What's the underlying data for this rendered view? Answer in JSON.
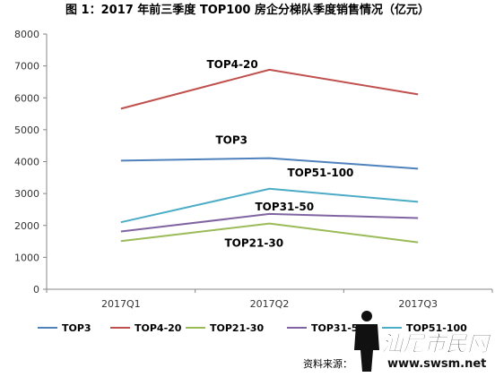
{
  "chart_data": {
    "type": "line",
    "title": "图 1：2017 年前三季度 TOP100 房企分梯队季度销售情况（亿元）",
    "categories": [
      "2017Q1",
      "2017Q2",
      "2017Q3"
    ],
    "ylim": [
      0,
      8000
    ],
    "yticks": [
      0,
      1000,
      2000,
      3000,
      4000,
      5000,
      6000,
      7000,
      8000
    ],
    "grid": false,
    "legend_position": "bottom",
    "series": [
      {
        "name": "TOP3",
        "label": "TOP3",
        "color": "#4f81bd",
        "values": [
          4030,
          4110,
          3780
        ]
      },
      {
        "name": "TOP4-20",
        "label": "TOP4-20",
        "color": "#c0504d",
        "values": [
          5660,
          6880,
          6110
        ]
      },
      {
        "name": "TOP21-30",
        "label": "TOP21-30",
        "color": "#9bbb59",
        "values": [
          1510,
          2060,
          1470
        ]
      },
      {
        "name": "TOP31-50",
        "label": "TOP31-50",
        "color": "#8064a2",
        "values": [
          1810,
          2360,
          2230
        ]
      },
      {
        "name": "TOP51-100",
        "label": "TOP51-100",
        "color": "#4bacc6",
        "values": [
          2100,
          3150,
          2740
        ]
      }
    ]
  },
  "footer": {
    "source_label": "资料来源：",
    "watermark_text": "汕尾市民网",
    "watermark_url": "www.swsm.net"
  }
}
